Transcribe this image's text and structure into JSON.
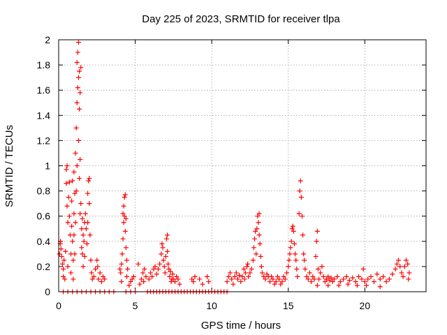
{
  "chart_data": {
    "type": "scatter",
    "title": "Day 225 of 2023, SRMTID for receiver tlpa",
    "xlabel": "GPS time / hours",
    "ylabel": "SRMTID / TECUs",
    "xlim": [
      0,
      24
    ],
    "ylim": [
      0,
      2
    ],
    "xticks": [
      0,
      5,
      10,
      15,
      20
    ],
    "xtick_labels": [
      "0",
      "5",
      "10",
      "15",
      "20"
    ],
    "yticks": [
      0,
      0.2,
      0.4,
      0.6,
      0.8,
      1,
      1.2,
      1.4,
      1.6,
      1.8,
      2
    ],
    "ytick_labels": [
      "0",
      "0.2",
      "0.4",
      "0.6",
      "0.8",
      "1",
      "1.2",
      "1.4",
      "1.6",
      "1.8",
      "2"
    ],
    "grid": true,
    "marker": "+",
    "marker_color": "#ff0000",
    "series": [
      {
        "name": "SRMTID",
        "points": [
          [
            0.05,
            0.3
          ],
          [
            0.1,
            0.38
          ],
          [
            0.12,
            0.4
          ],
          [
            0.15,
            0.34
          ],
          [
            0.2,
            0.28
          ],
          [
            0.25,
            0.22
          ],
          [
            0.3,
            0.18
          ],
          [
            0.3,
            0.12
          ],
          [
            0.35,
            0.25
          ],
          [
            0.4,
            0.1
          ],
          [
            0.45,
            0.32
          ],
          [
            0.5,
            0.86
          ],
          [
            0.5,
            0.97
          ],
          [
            0.55,
            1.0
          ],
          [
            0.55,
            0.68
          ],
          [
            0.6,
            0.55
          ],
          [
            0.6,
            0.2
          ],
          [
            0.65,
            0.75
          ],
          [
            0.7,
            0.87
          ],
          [
            0.7,
            0.6
          ],
          [
            0.75,
            0.45
          ],
          [
            0.8,
            0.3
          ],
          [
            0.8,
            0.15
          ],
          [
            0.85,
            0.72
          ],
          [
            0.85,
            0.52
          ],
          [
            0.9,
            0.88
          ],
          [
            0.9,
            0.4
          ],
          [
            0.95,
            0.25
          ],
          [
            0.95,
            0.1
          ],
          [
            1.0,
            0.95
          ],
          [
            1.0,
            0.62
          ],
          [
            1.0,
            0.45
          ],
          [
            1.05,
            0.78
          ],
          [
            1.05,
            0.3
          ],
          [
            1.1,
            1.1
          ],
          [
            1.1,
            0.55
          ],
          [
            1.15,
            1.3
          ],
          [
            1.15,
            0.8
          ],
          [
            1.2,
            1.5
          ],
          [
            1.2,
            1.82
          ],
          [
            1.2,
            1.0
          ],
          [
            1.25,
            1.9
          ],
          [
            1.25,
            1.62
          ],
          [
            1.3,
            1.98
          ],
          [
            1.3,
            1.7
          ],
          [
            1.3,
            1.2
          ],
          [
            1.35,
            1.75
          ],
          [
            1.35,
            1.45
          ],
          [
            1.35,
            0.9
          ],
          [
            1.4,
            1.58
          ],
          [
            1.4,
            1.05
          ],
          [
            1.4,
            0.62
          ],
          [
            1.45,
            1.78
          ],
          [
            1.45,
            0.7
          ],
          [
            1.5,
            0.5
          ],
          [
            1.5,
            0.35
          ],
          [
            1.55,
            0.58
          ],
          [
            1.55,
            0.3
          ],
          [
            1.6,
            0.45
          ],
          [
            1.6,
            0.2
          ],
          [
            1.65,
            0.4
          ],
          [
            1.7,
            0.55
          ],
          [
            1.7,
            0.28
          ],
          [
            1.75,
            0.62
          ],
          [
            1.8,
            0.5
          ],
          [
            1.85,
            0.38
          ],
          [
            1.9,
            0.78
          ],
          [
            1.9,
            0.55
          ],
          [
            1.95,
            0.88
          ],
          [
            2.0,
            0.9
          ],
          [
            2.0,
            0.7
          ],
          [
            2.05,
            0.45
          ],
          [
            2.1,
            0.25
          ],
          [
            2.15,
            0.15
          ],
          [
            2.2,
            0.1
          ],
          [
            2.3,
            0.12
          ],
          [
            2.4,
            0.18
          ],
          [
            2.5,
            0.25
          ],
          [
            2.55,
            0.2
          ],
          [
            2.6,
            0.1
          ],
          [
            2.7,
            0.15
          ],
          [
            2.8,
            0.08
          ],
          [
            2.9,
            0.12
          ],
          [
            3.0,
            0.1
          ],
          [
            0.3,
            0
          ],
          [
            0.6,
            0
          ],
          [
            0.9,
            0
          ],
          [
            1.2,
            0
          ],
          [
            1.5,
            0
          ],
          [
            1.8,
            0
          ],
          [
            2.1,
            0
          ],
          [
            2.4,
            0
          ],
          [
            2.7,
            0
          ],
          [
            3.0,
            0
          ],
          [
            3.3,
            0
          ],
          [
            3.6,
            0
          ],
          [
            4.0,
            0.18
          ],
          [
            4.05,
            0.15
          ],
          [
            4.1,
            0.22
          ],
          [
            4.15,
            0.3
          ],
          [
            4.2,
            0.42
          ],
          [
            4.2,
            0.62
          ],
          [
            4.25,
            0.68
          ],
          [
            4.25,
            0.55
          ],
          [
            4.3,
            0.75
          ],
          [
            4.3,
            0.6
          ],
          [
            4.35,
            0.77
          ],
          [
            4.35,
            0.48
          ],
          [
            4.4,
            0.58
          ],
          [
            4.4,
            0.35
          ],
          [
            4.45,
            0.25
          ],
          [
            4.45,
            0.12
          ],
          [
            4.5,
            0.18
          ],
          [
            4.1,
            0.08
          ],
          [
            4.6,
            0.05
          ],
          [
            4.7,
            0.08
          ],
          [
            4.8,
            0.1
          ],
          [
            4.9,
            0.12
          ],
          [
            4.4,
            0
          ],
          [
            4.7,
            0
          ],
          [
            5.0,
            0
          ],
          [
            5.2,
            0.22
          ],
          [
            5.3,
            0.06
          ],
          [
            5.4,
            0.1
          ],
          [
            5.5,
            0.15
          ],
          [
            5.55,
            0.08
          ],
          [
            5.6,
            0.18
          ],
          [
            5.7,
            0.12
          ],
          [
            5.8,
            0
          ],
          [
            6.0,
            0
          ],
          [
            6.2,
            0
          ],
          [
            5.9,
            0.1
          ],
          [
            6.0,
            0.15
          ],
          [
            6.1,
            0.12
          ],
          [
            6.2,
            0.18
          ],
          [
            6.3,
            0.2
          ],
          [
            6.4,
            0.14
          ],
          [
            6.5,
            0.18
          ],
          [
            6.6,
            0.22
          ],
          [
            6.7,
            0.3
          ],
          [
            6.75,
            0.38
          ],
          [
            6.8,
            0.35
          ],
          [
            6.85,
            0.25
          ],
          [
            6.9,
            0.2
          ],
          [
            6.95,
            0.15
          ],
          [
            7.0,
            0.28
          ],
          [
            7.05,
            0.42
          ],
          [
            7.1,
            0.45
          ],
          [
            7.1,
            0.32
          ],
          [
            7.15,
            0.22
          ],
          [
            7.2,
            0.18
          ],
          [
            7.25,
            0.12
          ],
          [
            7.3,
            0.16
          ],
          [
            7.35,
            0.08
          ],
          [
            7.4,
            0.1
          ],
          [
            7.45,
            0.14
          ],
          [
            7.5,
            0.1
          ],
          [
            7.6,
            0.08
          ],
          [
            7.7,
            0.12
          ],
          [
            7.8,
            0.1
          ],
          [
            7.9,
            0.06
          ],
          [
            6.4,
            0
          ],
          [
            6.6,
            0
          ],
          [
            6.8,
            0
          ],
          [
            7.0,
            0
          ],
          [
            7.2,
            0
          ],
          [
            7.4,
            0
          ],
          [
            7.6,
            0
          ],
          [
            7.8,
            0
          ],
          [
            8.0,
            0
          ],
          [
            8.2,
            0
          ],
          [
            8.4,
            0
          ],
          [
            8.7,
            0.1
          ],
          [
            8.8,
            0.08
          ],
          [
            8.9,
            0.12
          ],
          [
            9.2,
            0.1
          ],
          [
            9.4,
            0.06
          ],
          [
            9.7,
            0.12
          ],
          [
            9.8,
            0.08
          ],
          [
            8.6,
            0
          ],
          [
            8.8,
            0
          ],
          [
            9.0,
            0
          ],
          [
            9.2,
            0
          ],
          [
            9.4,
            0
          ],
          [
            9.6,
            0
          ],
          [
            9.8,
            0
          ],
          [
            10.0,
            0
          ],
          [
            10.2,
            0
          ],
          [
            10.4,
            0
          ],
          [
            10.6,
            0
          ],
          [
            10.8,
            0
          ],
          [
            11.0,
            0
          ],
          [
            11.0,
            0.08
          ],
          [
            11.1,
            0.12
          ],
          [
            11.2,
            0.15
          ],
          [
            11.3,
            0.1
          ],
          [
            11.4,
            0.06
          ],
          [
            11.5,
            0.12
          ],
          [
            11.6,
            0.15
          ],
          [
            11.7,
            0.1
          ],
          [
            11.8,
            0.13
          ],
          [
            11.9,
            0.08
          ],
          [
            12.0,
            0.12
          ],
          [
            12.1,
            0.18
          ],
          [
            12.15,
            0.1
          ],
          [
            12.2,
            0.15
          ],
          [
            12.3,
            0.2
          ],
          [
            12.35,
            0.22
          ],
          [
            12.4,
            0.12
          ],
          [
            12.5,
            0.15
          ],
          [
            12.6,
            0.18
          ],
          [
            12.7,
            0.25
          ],
          [
            12.75,
            0.35
          ],
          [
            12.8,
            0.42
          ],
          [
            12.85,
            0.48
          ],
          [
            12.9,
            0.3
          ],
          [
            12.95,
            0.5
          ],
          [
            13.0,
            0.6
          ],
          [
            13.05,
            0.55
          ],
          [
            13.1,
            0.45
          ],
          [
            13.1,
            0.62
          ],
          [
            13.15,
            0.38
          ],
          [
            13.2,
            0.28
          ],
          [
            13.25,
            0.2
          ],
          [
            13.3,
            0.15
          ],
          [
            13.4,
            0.12
          ],
          [
            13.5,
            0.1
          ],
          [
            13.6,
            0.14
          ],
          [
            13.7,
            0.12
          ],
          [
            13.8,
            0.08
          ],
          [
            13.9,
            0.12
          ],
          [
            14.0,
            0.1
          ],
          [
            14.1,
            0.06
          ],
          [
            14.2,
            0.08
          ],
          [
            14.3,
            0.12
          ],
          [
            14.4,
            0.1
          ],
          [
            14.5,
            0.06
          ],
          [
            14.6,
            0.08
          ],
          [
            14.7,
            0.12
          ],
          [
            14.8,
            0.1
          ],
          [
            14.9,
            0.15
          ],
          [
            15.0,
            0.2
          ],
          [
            15.05,
            0.25
          ],
          [
            15.1,
            0.3
          ],
          [
            15.15,
            0.35
          ],
          [
            15.2,
            0.4
          ],
          [
            15.25,
            0.5
          ],
          [
            15.3,
            0.52
          ],
          [
            15.35,
            0.48
          ],
          [
            15.4,
            0.38
          ],
          [
            15.45,
            0.3
          ],
          [
            15.5,
            0.25
          ],
          [
            15.55,
            0.18
          ],
          [
            15.6,
            0.12
          ],
          [
            15.7,
            0.62
          ],
          [
            15.75,
            0.8
          ],
          [
            15.8,
            0.88
          ],
          [
            15.85,
            0.75
          ],
          [
            15.9,
            0.6
          ],
          [
            15.95,
            0.45
          ],
          [
            16.0,
            0.3
          ],
          [
            16.05,
            0.25
          ],
          [
            16.1,
            0.18
          ],
          [
            16.2,
            0.12
          ],
          [
            16.3,
            0.1
          ],
          [
            16.4,
            0.15
          ],
          [
            16.5,
            0.08
          ],
          [
            16.6,
            0.12
          ],
          [
            16.7,
            0.1
          ],
          [
            16.8,
            0.28
          ],
          [
            16.85,
            0.4
          ],
          [
            16.9,
            0.48
          ],
          [
            16.95,
            0.18
          ],
          [
            17.0,
            0.1
          ],
          [
            17.1,
            0.15
          ],
          [
            17.2,
            0.2
          ],
          [
            17.3,
            0.12
          ],
          [
            17.4,
            0.08
          ],
          [
            17.5,
            0.1
          ],
          [
            17.6,
            0.12
          ],
          [
            17.7,
            0.09
          ],
          [
            17.8,
            0.11
          ],
          [
            17.9,
            0.08
          ],
          [
            18.0,
            0.1
          ],
          [
            18.2,
            0.12
          ],
          [
            18.4,
            0.08
          ],
          [
            18.6,
            0.1
          ],
          [
            18.8,
            0.12
          ],
          [
            19.0,
            0.09
          ],
          [
            19.2,
            0.11
          ],
          [
            19.4,
            0.08
          ],
          [
            19.6,
            0.12
          ],
          [
            19.8,
            0.1
          ],
          [
            19.9,
            0.18
          ],
          [
            20.0,
            0.08
          ],
          [
            20.2,
            0.1
          ],
          [
            20.4,
            0.12
          ],
          [
            20.6,
            0.08
          ],
          [
            20.8,
            0.14
          ],
          [
            21.0,
            0.1
          ],
          [
            21.2,
            0.12
          ],
          [
            21.4,
            0.08
          ],
          [
            21.6,
            0.1
          ],
          [
            21.8,
            0.14
          ],
          [
            22.0,
            0.18
          ],
          [
            22.1,
            0.22
          ],
          [
            22.2,
            0.25
          ],
          [
            22.3,
            0.2
          ],
          [
            22.4,
            0.15
          ],
          [
            22.5,
            0.12
          ],
          [
            22.6,
            0.2
          ],
          [
            22.7,
            0.25
          ],
          [
            22.8,
            0.22
          ],
          [
            22.85,
            0.1
          ],
          [
            22.9,
            0.15
          ],
          [
            21.0,
            0.04
          ],
          [
            20.1,
            0.05
          ],
          [
            19.5,
            0.05
          ],
          [
            18.9,
            0.06
          ],
          [
            18.3,
            0.05
          ],
          [
            17.6,
            0.05
          ],
          [
            16.9,
            0.05
          ]
        ]
      }
    ]
  }
}
